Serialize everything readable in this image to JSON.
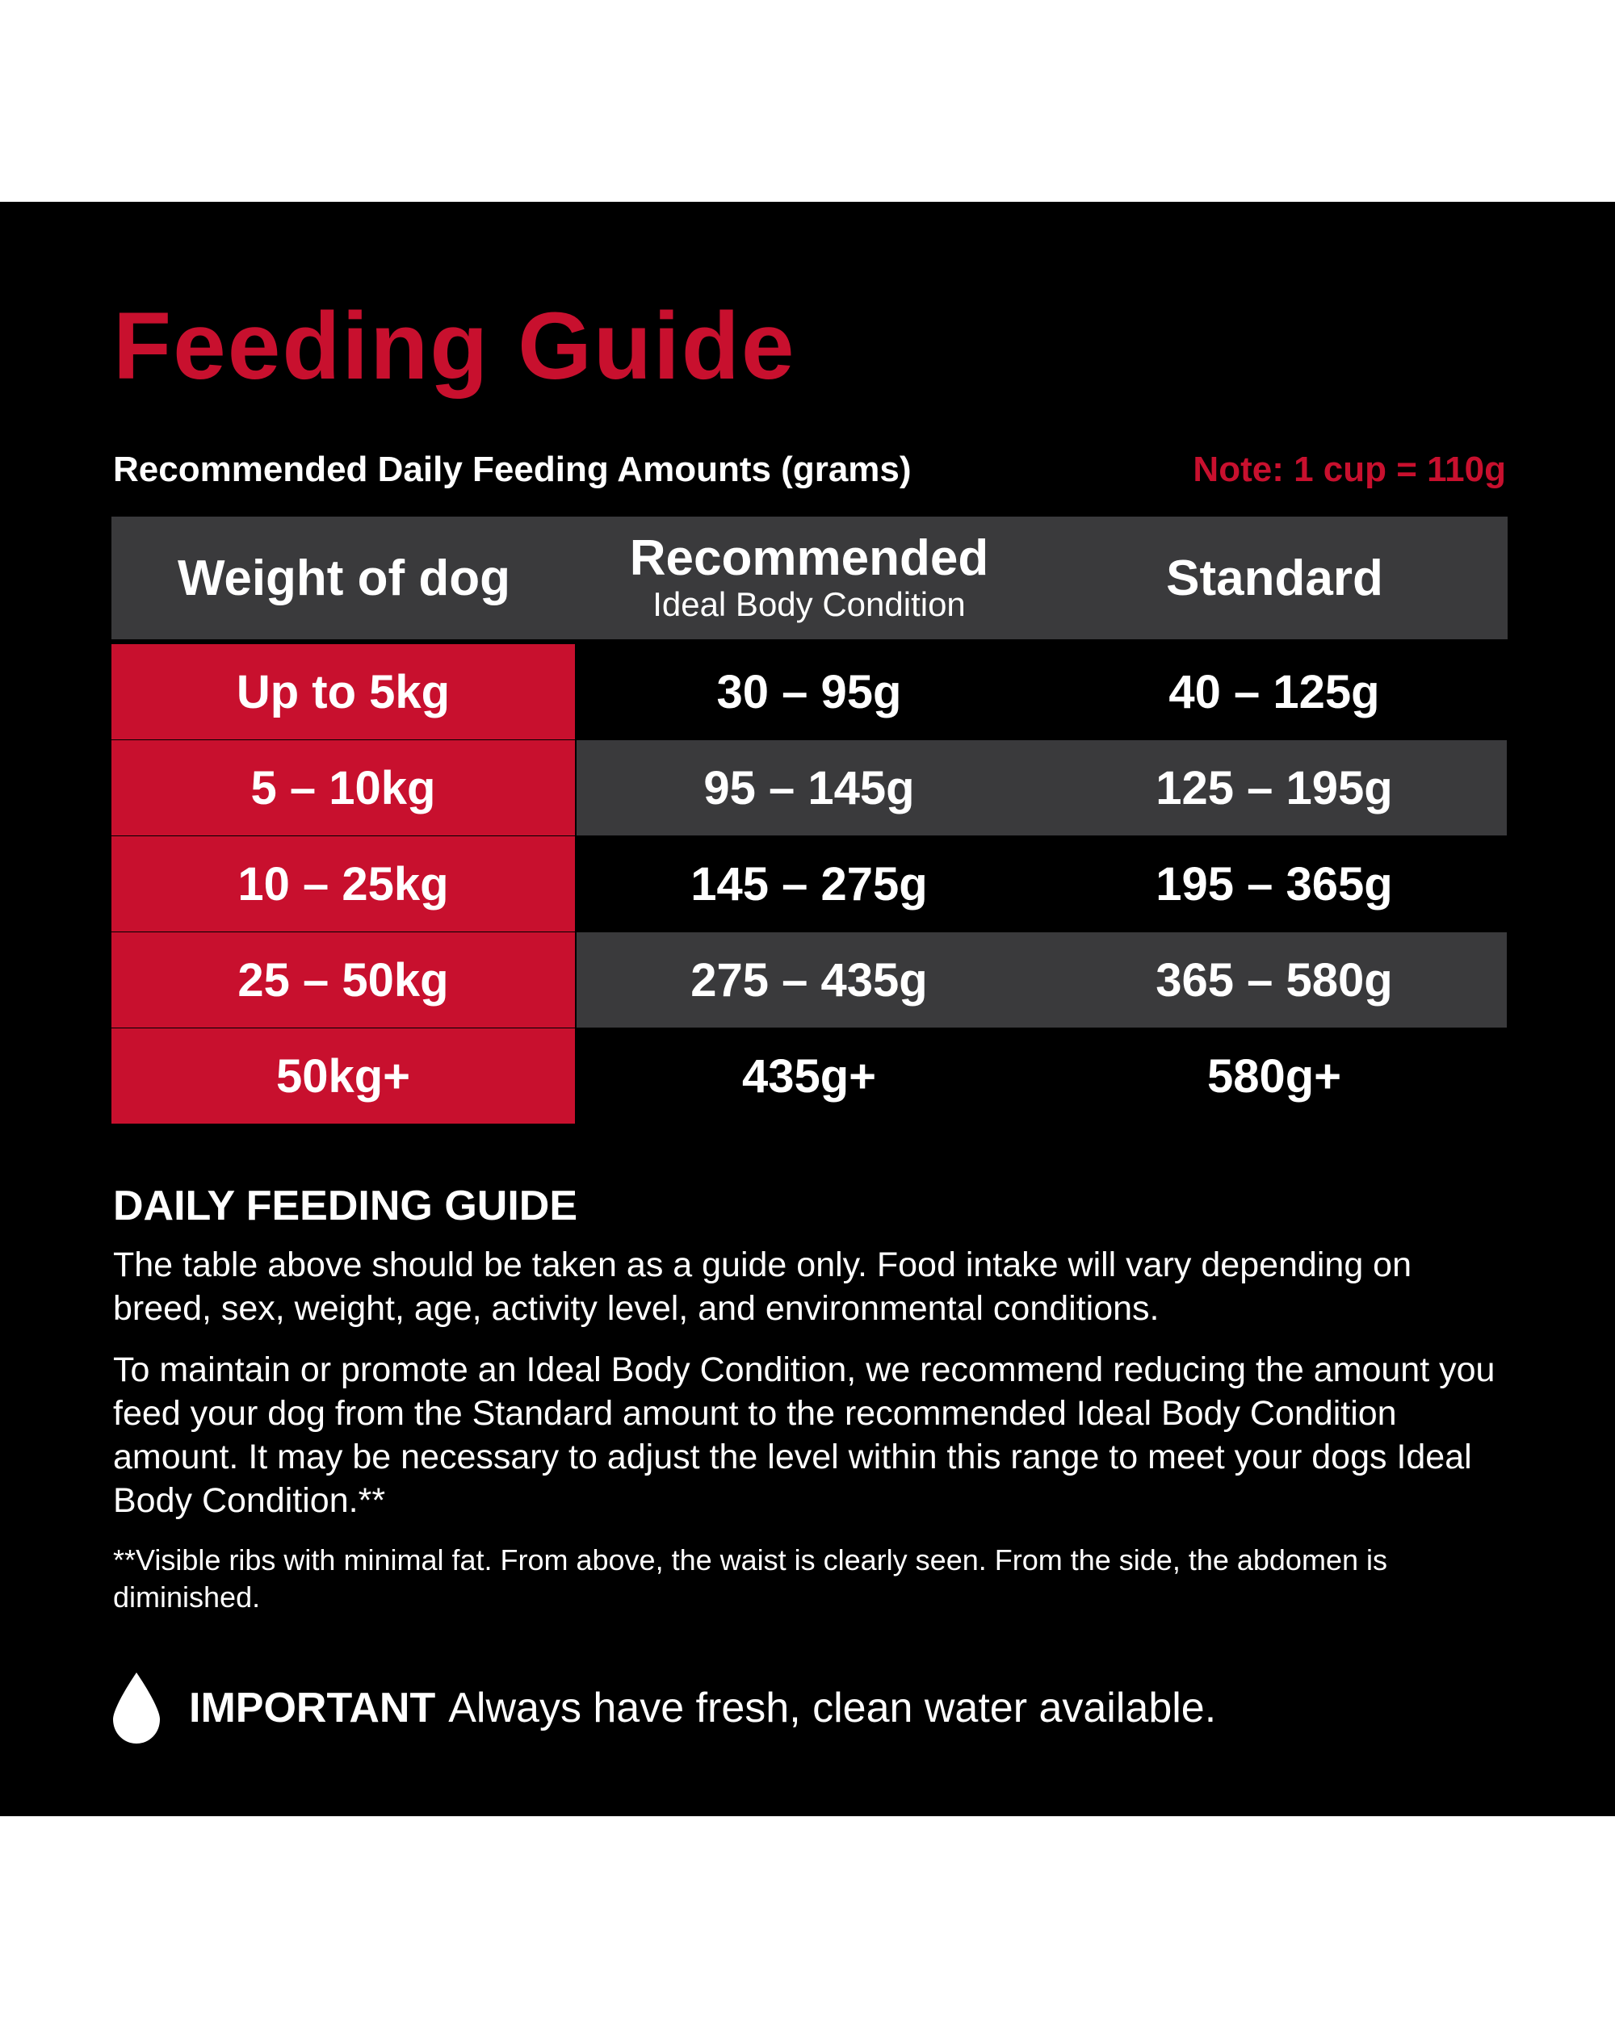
{
  "colors": {
    "accent": "#c8102e",
    "background": "#000000",
    "header_row": "#3a3a3c",
    "text": "#ffffff"
  },
  "title": "Feeding Guide",
  "subtitle": "Recommended Daily Feeding Amounts (grams)",
  "note": "Note: 1 cup = 110g",
  "table": {
    "headers": {
      "weight": "Weight of dog",
      "recommended": "Recommended",
      "recommended_sub": "Ideal Body Condition",
      "standard": "Standard"
    },
    "rows": [
      {
        "weight": "Up to 5kg",
        "recommended": "30 – 95g",
        "standard": "40 – 125g"
      },
      {
        "weight": "5 – 10kg",
        "recommended": "95 – 145g",
        "standard": "125 – 195g"
      },
      {
        "weight": "10 – 25kg",
        "recommended": "145 – 275g",
        "standard": "195 – 365g"
      },
      {
        "weight": "25 – 50kg",
        "recommended": "275 – 435g",
        "standard": "365 – 580g"
      },
      {
        "weight": "50kg+",
        "recommended": "435g+",
        "standard": "580g+"
      }
    ]
  },
  "daily_guide": {
    "heading": "DAILY FEEDING GUIDE",
    "paragraph1": "The table above should be taken as a guide only. Food intake will vary depending on breed, sex, weight, age, activity level, and environmental conditions.",
    "paragraph2": "To maintain or promote an Ideal Body Condition, we recommend reducing the amount you feed your dog from the Standard amount to the recommended Ideal Body Condition amount. It may be necessary to adjust the level within this range to meet your dogs Ideal Body Condition.**",
    "footnote": "**Visible ribs with minimal fat. From above, the waist is clearly seen. From the side, the abdomen is diminished."
  },
  "important": {
    "icon": "water-drop-icon",
    "label": "IMPORTANT",
    "text": "Always have fresh, clean water available."
  }
}
